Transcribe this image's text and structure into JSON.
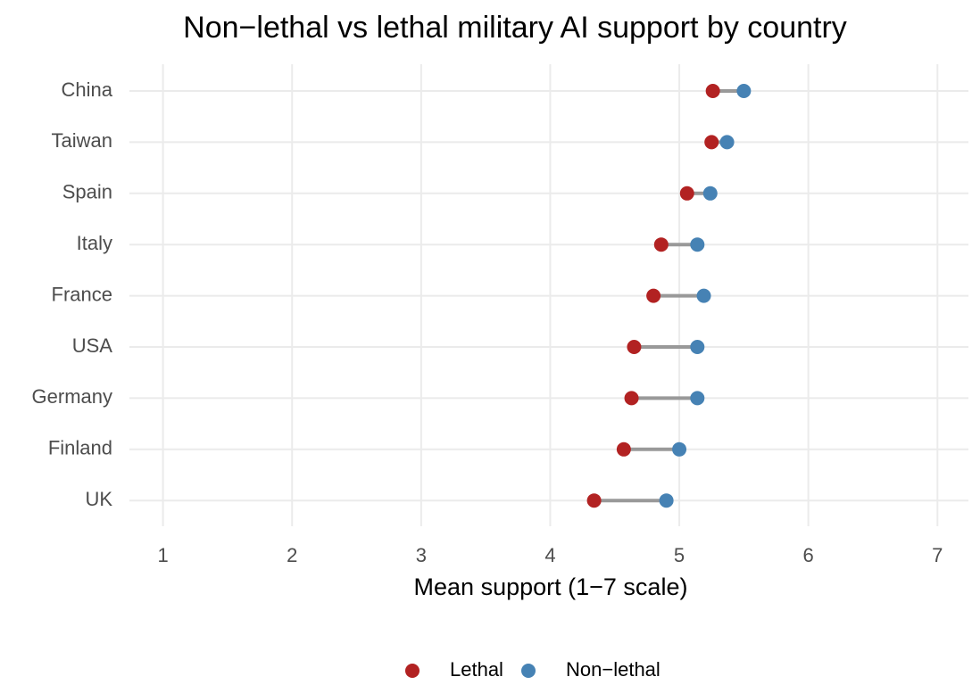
{
  "chart_data": {
    "type": "dumbbell",
    "title": "Non−lethal vs lethal military AI support by country",
    "x_label": "Mean support (1−7 scale)",
    "categories": [
      "China",
      "Taiwan",
      "Spain",
      "Italy",
      "France",
      "USA",
      "Germany",
      "Finland",
      "UK"
    ],
    "series": [
      {
        "name": "Lethal",
        "color": "#b22222",
        "values": [
          5.26,
          5.25,
          5.06,
          4.86,
          4.8,
          4.65,
          4.63,
          4.57,
          4.34
        ]
      },
      {
        "name": "Non−lethal",
        "color": "#4682b4",
        "values": [
          5.5,
          5.37,
          5.24,
          5.14,
          5.19,
          5.14,
          5.14,
          5.0,
          4.9
        ]
      }
    ],
    "segment_color": "#999999",
    "xlim": [
      0.74,
      7.24
    ],
    "xticks": [
      1,
      2,
      3,
      4,
      5,
      6,
      7
    ],
    "grid": true,
    "legend": "bottom"
  }
}
